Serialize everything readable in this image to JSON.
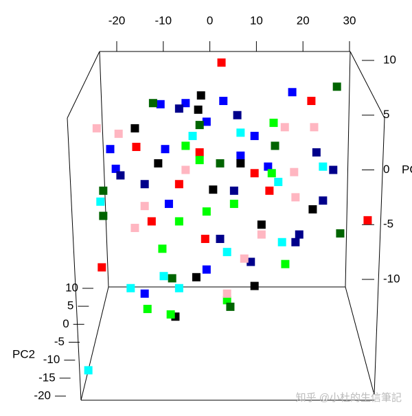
{
  "chart_data": {
    "type": "scatter3d",
    "x_axis_label": null,
    "y_axis_label": "PC",
    "z_axis_label": "PC2",
    "watermark": "知乎 @小杜的生信筆記",
    "xlim": [
      -20,
      30
    ],
    "xticks": [
      -20,
      -10,
      0,
      10,
      20,
      30
    ],
    "ylim": [
      -10,
      10
    ],
    "yticks": [
      -10,
      -5,
      0,
      5,
      10
    ],
    "zlim": [
      -20,
      10
    ],
    "zticks": [
      -20,
      -15,
      -10,
      -5,
      0,
      5,
      10
    ],
    "series": [
      {
        "color": "#ff0000",
        "x": [
          2.5,
          21.8,
          -15.8,
          33.9,
          -23.2,
          -2.2,
          9.6,
          12.8,
          -12.5,
          -6.6,
          -1.0
        ],
        "values": [
          9.8,
          6.3,
          2.1,
          -4.6,
          -8.9,
          1.6,
          -0.3,
          -1.9,
          -4.7,
          -1.3,
          -6.3
        ]
      },
      {
        "color": "#0000ff",
        "x": [
          17.7,
          -10.6,
          -5.2,
          2.9,
          -21.4,
          -20.2,
          -9.6,
          -0.7,
          6.6,
          -8.8,
          -14.0,
          -0.7,
          9.6,
          12.5
        ],
        "values": [
          7.1,
          6.0,
          6.1,
          6.3,
          1.9,
          0.1,
          1.9,
          4.4,
          1.3,
          -3.1,
          -11.3,
          -9.1,
          3.1,
          0.3
        ]
      },
      {
        "color": "#00008b",
        "x": [
          22.9,
          26.5,
          24.3,
          19.2,
          18.4,
          -19.2,
          -14.0,
          -6.6,
          5.9,
          2.2,
          8.8,
          5.2
        ],
        "values": [
          1.6,
          0,
          -2.8,
          -5.9,
          -6.6,
          -0.5,
          -1.3,
          5.6,
          5.0,
          -6.3,
          -8.4,
          -1.9
        ]
      },
      {
        "color": "#000000",
        "x": [
          -1.9,
          -16.1,
          -2.5,
          6.6,
          22.1,
          9.6,
          -2.9,
          -7.4,
          0.7,
          -11.1,
          11.1
        ],
        "values": [
          6.8,
          3.8,
          5.5,
          0.6,
          -3.6,
          -10.6,
          -9.8,
          -13.4,
          -1.8,
          0.6,
          -5.0
        ]
      },
      {
        "color": "#00ff00",
        "x": [
          13.7,
          -8.4,
          -13.4,
          -10.2,
          -6.6,
          5.2,
          -2.2,
          -0.7,
          16.2,
          13.3,
          -5.2,
          3.7
        ],
        "values": [
          4.3,
          -13.2,
          -12.7,
          -7.2,
          -4.7,
          -3.1,
          0.9,
          -3.8,
          -8.6,
          -0.3,
          2.2,
          -11.9
        ]
      },
      {
        "color": "#006400",
        "x": [
          27.3,
          -12.2,
          -22.9,
          -22.9,
          28.0,
          14.0,
          4.4,
          2.2,
          -8.1,
          -2.2
        ],
        "values": [
          7.6,
          6.1,
          -1.9,
          -4.2,
          -5.8,
          2.2,
          -12.5,
          0.6,
          -9.9,
          4.1
        ]
      },
      {
        "color": "#ffb6c1",
        "x": [
          -24.3,
          -19.6,
          16.1,
          22.4,
          18.1,
          -14.0,
          -16.1,
          11.1,
          18.4,
          3.7,
          7.4,
          -5.2
        ],
        "values": [
          3.8,
          3.3,
          3.9,
          3.9,
          -0.2,
          -3.3,
          -5.3,
          -5.9,
          -2.5,
          -11.3,
          -8.1,
          0
        ]
      },
      {
        "color": "#00ffff",
        "x": [
          24.3,
          -23.5,
          -17.0,
          -9.9,
          -6.6,
          -26.1,
          14.7,
          3.7,
          6.6,
          -3.7,
          15.5
        ],
        "values": [
          0.3,
          -2.9,
          -10.8,
          -9.7,
          -10.8,
          -18.3,
          -1.1,
          -7.5,
          3.4,
          3.1,
          -6.6
        ]
      }
    ]
  }
}
